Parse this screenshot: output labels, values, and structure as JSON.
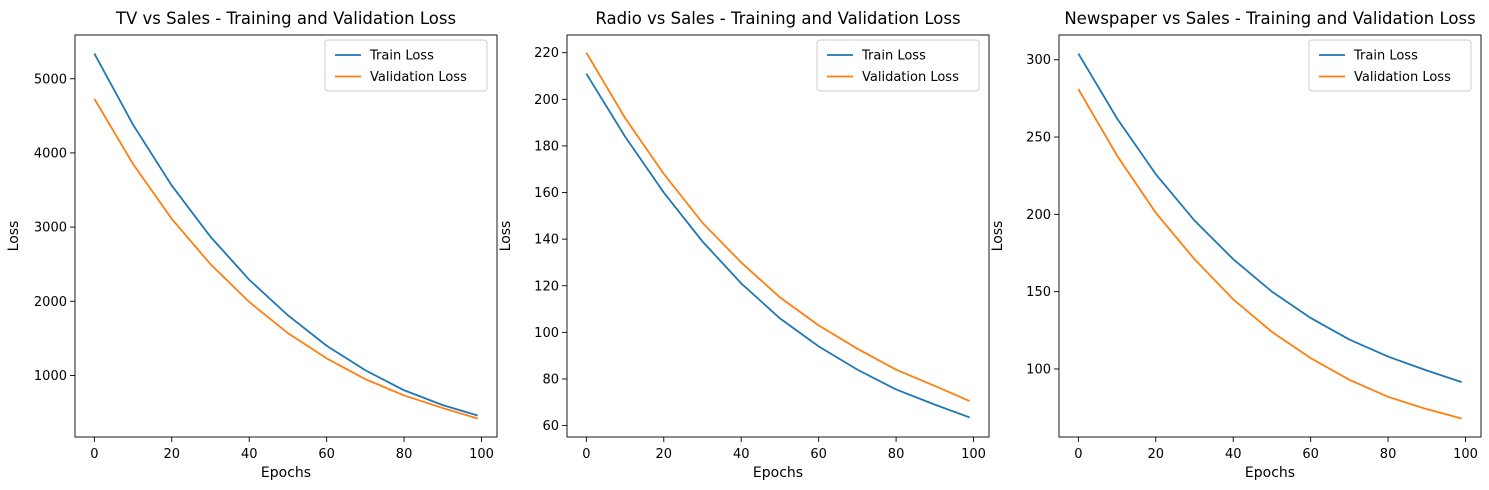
{
  "chart_data": [
    {
      "type": "line",
      "title": "TV vs Sales - Training and Validation Loss",
      "xlabel": "Epochs",
      "ylabel": "Loss",
      "xlim": [
        -5,
        104
      ],
      "ylim": [
        170,
        5590
      ],
      "xticks": [
        0,
        20,
        40,
        60,
        80,
        100
      ],
      "yticks": [
        1000,
        2000,
        3000,
        4000,
        5000
      ],
      "legend": "upper right",
      "grid": false,
      "series": [
        {
          "name": "Train Loss",
          "color": "#1f77b4",
          "x": [
            0,
            10,
            20,
            30,
            40,
            50,
            60,
            70,
            80,
            90,
            99
          ],
          "y": [
            5340,
            4380,
            3560,
            2870,
            2290,
            1810,
            1400,
            1070,
            800,
            600,
            460
          ]
        },
        {
          "name": "Validation Loss",
          "color": "#ff7f0e",
          "x": [
            0,
            10,
            20,
            30,
            40,
            50,
            60,
            70,
            80,
            90,
            99
          ],
          "y": [
            4730,
            3850,
            3110,
            2500,
            1990,
            1570,
            1230,
            950,
            730,
            560,
            420
          ]
        }
      ]
    },
    {
      "type": "line",
      "title": "Radio vs Sales - Training and Validation Loss",
      "xlabel": "Epochs",
      "ylabel": "Loss",
      "xlim": [
        -5,
        104
      ],
      "ylim": [
        55.1,
        227.6
      ],
      "xticks": [
        0,
        20,
        40,
        60,
        80,
        100
      ],
      "yticks": [
        60,
        80,
        100,
        120,
        140,
        160,
        180,
        200,
        220
      ],
      "legend": "upper right",
      "grid": false,
      "series": [
        {
          "name": "Train Loss",
          "color": "#1f77b4",
          "x": [
            0,
            10,
            20,
            30,
            40,
            50,
            60,
            70,
            80,
            90,
            99
          ],
          "y": [
            211,
            184,
            160,
            139,
            121,
            106,
            94,
            84,
            75.5,
            69,
            63.5
          ]
        },
        {
          "name": "Validation Loss",
          "color": "#ff7f0e",
          "x": [
            0,
            10,
            20,
            30,
            40,
            50,
            60,
            70,
            80,
            90,
            99
          ],
          "y": [
            220,
            192,
            168,
            147,
            130,
            115,
            103,
            93,
            84,
            77,
            70.5
          ]
        }
      ]
    },
    {
      "type": "line",
      "title": "Newspaper vs Sales - Training and Validation Loss",
      "xlabel": "Epochs",
      "ylabel": "Loss",
      "xlim": [
        -5,
        104
      ],
      "ylim": [
        56,
        316
      ],
      "xticks": [
        0,
        20,
        40,
        60,
        80,
        100
      ],
      "yticks": [
        100,
        150,
        200,
        250,
        300
      ],
      "legend": "upper right",
      "grid": false,
      "series": [
        {
          "name": "Train Loss",
          "color": "#1f77b4",
          "x": [
            0,
            10,
            20,
            30,
            40,
            50,
            60,
            70,
            80,
            90,
            99
          ],
          "y": [
            304,
            262,
            226,
            196,
            171,
            150,
            133,
            119,
            108,
            99,
            91.5
          ]
        },
        {
          "name": "Validation Loss",
          "color": "#ff7f0e",
          "x": [
            0,
            10,
            20,
            30,
            40,
            50,
            60,
            70,
            80,
            90,
            99
          ],
          "y": [
            281,
            238,
            201,
            171,
            145,
            124,
            107,
            93,
            82,
            74,
            68
          ]
        }
      ]
    }
  ]
}
